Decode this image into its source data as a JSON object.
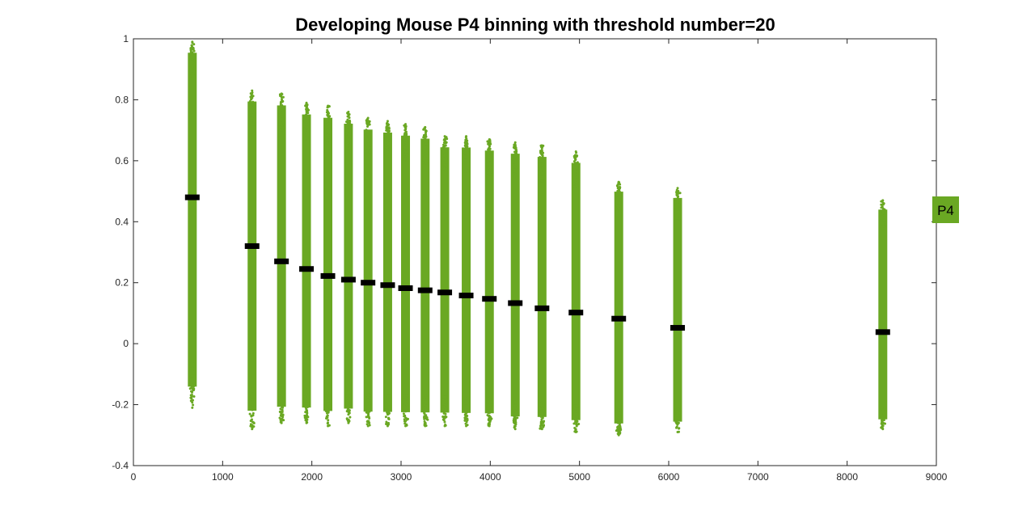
{
  "chart_data": {
    "type": "scatter",
    "title": "Developing Mouse P4 binning with threshold number=20",
    "xlabel": "",
    "ylabel": "",
    "xlim": [
      0,
      9000
    ],
    "ylim": [
      -0.4,
      1
    ],
    "xticks": [
      0,
      1000,
      2000,
      3000,
      4000,
      5000,
      6000,
      7000,
      8000,
      9000
    ],
    "yticks": [
      -0.4,
      -0.2,
      0,
      0.2,
      0.4,
      0.6,
      0.8,
      1
    ],
    "xtick_labels": [
      "0",
      "1000",
      "2000",
      "3000",
      "4000",
      "5000",
      "6000",
      "7000",
      "8000",
      "9000"
    ],
    "ytick_labels": [
      "-0.4",
      "-0.2",
      "0",
      "0.2",
      "0.4",
      "0.6",
      "0.8",
      "1"
    ],
    "grid": false,
    "legend": {
      "label": "P4",
      "placement": "right"
    },
    "colors": {
      "points": "#6aa823",
      "mean": "#000000",
      "axis": "#262626",
      "legend_fill": "#6aa823"
    },
    "series": [
      {
        "name": "P4",
        "bins": [
          {
            "x": 660,
            "min": -0.21,
            "max": 0.99,
            "mean": 0.48
          },
          {
            "x": 1330,
            "min": -0.28,
            "max": 0.83,
            "mean": 0.32
          },
          {
            "x": 1660,
            "min": -0.26,
            "max": 0.82,
            "mean": 0.27
          },
          {
            "x": 1940,
            "min": -0.26,
            "max": 0.79,
            "mean": 0.245
          },
          {
            "x": 2180,
            "min": -0.27,
            "max": 0.78,
            "mean": 0.222
          },
          {
            "x": 2410,
            "min": -0.26,
            "max": 0.76,
            "mean": 0.21
          },
          {
            "x": 2630,
            "min": -0.27,
            "max": 0.74,
            "mean": 0.2
          },
          {
            "x": 2850,
            "min": -0.27,
            "max": 0.73,
            "mean": 0.192
          },
          {
            "x": 3050,
            "min": -0.27,
            "max": 0.72,
            "mean": 0.182
          },
          {
            "x": 3270,
            "min": -0.27,
            "max": 0.71,
            "mean": 0.175
          },
          {
            "x": 3490,
            "min": -0.27,
            "max": 0.68,
            "mean": 0.168
          },
          {
            "x": 3730,
            "min": -0.27,
            "max": 0.68,
            "mean": 0.158
          },
          {
            "x": 3990,
            "min": -0.27,
            "max": 0.67,
            "mean": 0.147
          },
          {
            "x": 4280,
            "min": -0.28,
            "max": 0.66,
            "mean": 0.133
          },
          {
            "x": 4580,
            "min": -0.28,
            "max": 0.65,
            "mean": 0.116
          },
          {
            "x": 4960,
            "min": -0.29,
            "max": 0.63,
            "mean": 0.102
          },
          {
            "x": 5440,
            "min": -0.3,
            "max": 0.53,
            "mean": 0.082
          },
          {
            "x": 6100,
            "min": -0.29,
            "max": 0.51,
            "mean": 0.052
          },
          {
            "x": 8400,
            "min": -0.28,
            "max": 0.47,
            "mean": 0.038
          }
        ]
      }
    ]
  }
}
